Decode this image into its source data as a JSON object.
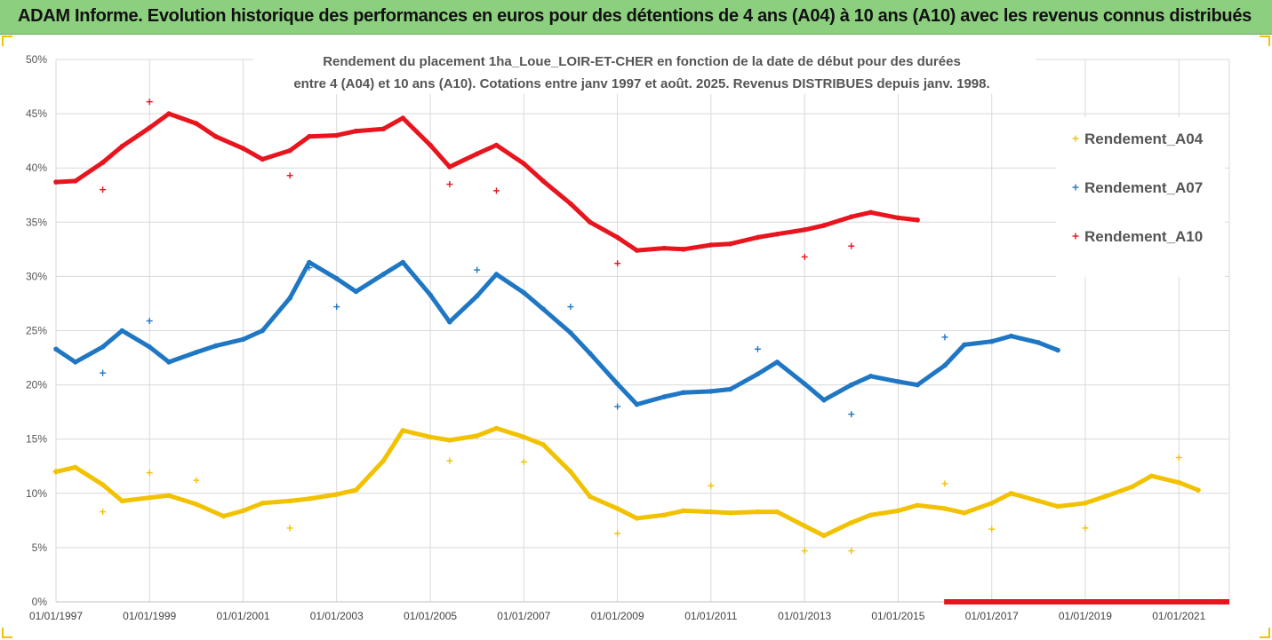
{
  "banner": {
    "title": "ADAM Informe. Evolution historique des performances en euros pour des détentions de 4 ans (A04) à 10 ans (A10) avec les revenus connus distribués",
    "color": "#8ccf7e"
  },
  "chart_data": {
    "type": "line",
    "title_lines": [
      "Rendement du placement 1ha_Loue_LOIR-ET-CHER en fonction de la date de début pour des durées",
      "entre 4 (A04) et 10 ans (A10). Cotations entre janv 1997 et août. 2025. Revenus DISTRIBUES depuis janv. 1998."
    ],
    "xlabel": "",
    "ylabel": "",
    "x_range": [
      "1997-01-01",
      "2022-01-01"
    ],
    "ylim": [
      0,
      50
    ],
    "y_unit": "%",
    "y_ticks": [
      "0%",
      "5%",
      "10%",
      "15%",
      "20%",
      "25%",
      "30%",
      "35%",
      "40%",
      "45%",
      "50%"
    ],
    "x_ticks": [
      {
        "date": "1997-01-01",
        "label": "01/01/1997"
      },
      {
        "date": "1999-01-01",
        "label": "01/01/1999"
      },
      {
        "date": "2001-01-01",
        "label": "01/01/2001"
      },
      {
        "date": "2003-01-01",
        "label": "01/01/2003"
      },
      {
        "date": "2005-01-01",
        "label": "01/01/2005"
      },
      {
        "date": "2007-01-01",
        "label": "01/01/2007"
      },
      {
        "date": "2009-01-01",
        "label": "01/01/2009"
      },
      {
        "date": "2011-01-01",
        "label": "01/01/2011"
      },
      {
        "date": "2013-01-01",
        "label": "01/01/2013"
      },
      {
        "date": "2015-01-01",
        "label": "01/01/2015"
      },
      {
        "date": "2017-01-01",
        "label": "01/01/2017"
      },
      {
        "date": "2019-01-01",
        "label": "01/01/2019"
      },
      {
        "date": "2021-01-01",
        "label": "01/01/2021"
      }
    ],
    "grid": true,
    "legend_position": "right",
    "series": [
      {
        "name": "Rendement_A04",
        "color": "#f2c200",
        "points": [
          [
            "1997-01-01",
            12.0
          ],
          [
            "1997-06-01",
            12.4
          ],
          [
            "1998-01-01",
            10.8
          ],
          [
            "1998-06-01",
            9.3
          ],
          [
            "1999-01-01",
            9.6
          ],
          [
            "1999-06-01",
            9.8
          ],
          [
            "2000-01-01",
            9.0
          ],
          [
            "2000-08-01",
            7.9
          ],
          [
            "2001-01-01",
            8.4
          ],
          [
            "2001-06-01",
            9.1
          ],
          [
            "2002-01-01",
            9.3
          ],
          [
            "2002-06-01",
            9.5
          ],
          [
            "2003-01-01",
            9.9
          ],
          [
            "2003-06-01",
            10.3
          ],
          [
            "2004-01-01",
            13.0
          ],
          [
            "2004-06-01",
            15.8
          ],
          [
            "2005-01-01",
            15.2
          ],
          [
            "2005-06-01",
            14.9
          ],
          [
            "2006-01-01",
            15.3
          ],
          [
            "2006-06-01",
            16.0
          ],
          [
            "2007-01-01",
            15.2
          ],
          [
            "2007-06-01",
            14.5
          ],
          [
            "2008-01-01",
            12.0
          ],
          [
            "2008-06-01",
            9.7
          ],
          [
            "2009-01-01",
            8.6
          ],
          [
            "2009-06-01",
            7.7
          ],
          [
            "2010-01-01",
            8.0
          ],
          [
            "2010-06-01",
            8.4
          ],
          [
            "2011-01-01",
            8.3
          ],
          [
            "2011-06-01",
            8.2
          ],
          [
            "2012-01-01",
            8.3
          ],
          [
            "2012-06-01",
            8.3
          ],
          [
            "2013-01-01",
            7.0
          ],
          [
            "2013-06-01",
            6.1
          ],
          [
            "2014-01-01",
            7.3
          ],
          [
            "2014-06-01",
            8.0
          ],
          [
            "2015-01-01",
            8.4
          ],
          [
            "2015-06-01",
            8.9
          ],
          [
            "2016-01-01",
            8.6
          ],
          [
            "2016-06-01",
            8.2
          ],
          [
            "2017-01-01",
            9.1
          ],
          [
            "2017-06-01",
            10.0
          ],
          [
            "2018-01-01",
            9.3
          ],
          [
            "2018-06-01",
            8.8
          ],
          [
            "2019-01-01",
            9.1
          ],
          [
            "2019-06-01",
            9.7
          ],
          [
            "2020-01-01",
            10.6
          ],
          [
            "2020-06-01",
            11.6
          ],
          [
            "2021-01-01",
            11.0
          ],
          [
            "2021-06-01",
            10.3
          ]
        ],
        "scatter": [
          [
            "1997-01-01",
            12.0
          ],
          [
            "1998-01-01",
            8.3
          ],
          [
            "1999-01-01",
            11.9
          ],
          [
            "2000-01-01",
            11.2
          ],
          [
            "2002-01-01",
            6.8
          ],
          [
            "2005-06-01",
            13.0
          ],
          [
            "2007-01-01",
            12.9
          ],
          [
            "2009-01-01",
            6.3
          ],
          [
            "2011-01-01",
            10.7
          ],
          [
            "2013-01-01",
            4.7
          ],
          [
            "2014-01-01",
            4.7
          ],
          [
            "2016-01-01",
            10.9
          ],
          [
            "2017-01-01",
            6.7
          ],
          [
            "2019-01-01",
            6.8
          ],
          [
            "2021-01-01",
            13.3
          ]
        ]
      },
      {
        "name": "Rendement_A07",
        "color": "#1f77c4",
        "points": [
          [
            "1997-01-01",
            23.3
          ],
          [
            "1997-06-01",
            22.1
          ],
          [
            "1998-01-01",
            23.5
          ],
          [
            "1998-06-01",
            25.0
          ],
          [
            "1999-01-01",
            23.5
          ],
          [
            "1999-06-01",
            22.1
          ],
          [
            "2000-01-01",
            23.0
          ],
          [
            "2000-06-01",
            23.6
          ],
          [
            "2001-01-01",
            24.2
          ],
          [
            "2001-06-01",
            25.0
          ],
          [
            "2002-01-01",
            28.0
          ],
          [
            "2002-06-01",
            31.3
          ],
          [
            "2003-01-01",
            29.8
          ],
          [
            "2003-06-01",
            28.6
          ],
          [
            "2004-01-01",
            30.2
          ],
          [
            "2004-06-01",
            31.3
          ],
          [
            "2005-01-01",
            28.3
          ],
          [
            "2005-06-01",
            25.8
          ],
          [
            "2006-01-01",
            28.2
          ],
          [
            "2006-06-01",
            30.2
          ],
          [
            "2007-01-01",
            28.5
          ],
          [
            "2007-06-01",
            27.0
          ],
          [
            "2008-01-01",
            24.8
          ],
          [
            "2008-06-01",
            22.9
          ],
          [
            "2009-01-01",
            20.1
          ],
          [
            "2009-06-01",
            18.2
          ],
          [
            "2010-01-01",
            18.9
          ],
          [
            "2010-06-01",
            19.3
          ],
          [
            "2011-01-01",
            19.4
          ],
          [
            "2011-06-01",
            19.6
          ],
          [
            "2012-01-01",
            21.0
          ],
          [
            "2012-06-01",
            22.1
          ],
          [
            "2013-01-01",
            20.1
          ],
          [
            "2013-06-01",
            18.6
          ],
          [
            "2014-01-01",
            20.0
          ],
          [
            "2014-06-01",
            20.8
          ],
          [
            "2015-01-01",
            20.3
          ],
          [
            "2015-06-01",
            20.0
          ],
          [
            "2016-01-01",
            21.8
          ],
          [
            "2016-06-01",
            23.7
          ],
          [
            "2017-01-01",
            24.0
          ],
          [
            "2017-06-01",
            24.5
          ],
          [
            "2018-01-01",
            23.9
          ],
          [
            "2018-06-01",
            23.2
          ]
        ],
        "scatter": [
          [
            "1998-01-01",
            21.1
          ],
          [
            "1999-01-01",
            25.9
          ],
          [
            "2002-06-01",
            30.8
          ],
          [
            "2003-01-01",
            27.2
          ],
          [
            "2006-01-01",
            30.6
          ],
          [
            "2008-01-01",
            27.2
          ],
          [
            "2009-01-01",
            18.0
          ],
          [
            "2012-01-01",
            23.3
          ],
          [
            "2014-01-01",
            17.3
          ],
          [
            "2016-01-01",
            24.4
          ]
        ]
      },
      {
        "name": "Rendement_A10",
        "color": "#e8141e",
        "points": [
          [
            "1997-01-01",
            38.7
          ],
          [
            "1997-06-01",
            38.8
          ],
          [
            "1998-01-01",
            40.5
          ],
          [
            "1998-06-01",
            42.0
          ],
          [
            "1999-01-01",
            43.7
          ],
          [
            "1999-06-01",
            45.0
          ],
          [
            "2000-01-01",
            44.1
          ],
          [
            "2000-06-01",
            42.9
          ],
          [
            "2001-01-01",
            41.8
          ],
          [
            "2001-06-01",
            40.8
          ],
          [
            "2002-01-01",
            41.6
          ],
          [
            "2002-06-01",
            42.9
          ],
          [
            "2003-01-01",
            43.0
          ],
          [
            "2003-06-01",
            43.4
          ],
          [
            "2004-01-01",
            43.6
          ],
          [
            "2004-06-01",
            44.6
          ],
          [
            "2005-01-01",
            42.1
          ],
          [
            "2005-06-01",
            40.1
          ],
          [
            "2006-01-01",
            41.3
          ],
          [
            "2006-06-01",
            42.1
          ],
          [
            "2007-01-01",
            40.4
          ],
          [
            "2007-06-01",
            38.8
          ],
          [
            "2008-01-01",
            36.7
          ],
          [
            "2008-06-01",
            35.0
          ],
          [
            "2009-01-01",
            33.6
          ],
          [
            "2009-06-01",
            32.4
          ],
          [
            "2010-01-01",
            32.6
          ],
          [
            "2010-06-01",
            32.5
          ],
          [
            "2011-01-01",
            32.9
          ],
          [
            "2011-06-01",
            33.0
          ],
          [
            "2012-01-01",
            33.6
          ],
          [
            "2012-06-01",
            33.9
          ],
          [
            "2013-01-01",
            34.3
          ],
          [
            "2013-06-01",
            34.7
          ],
          [
            "2014-01-01",
            35.5
          ],
          [
            "2014-06-01",
            35.9
          ],
          [
            "2015-01-01",
            35.4
          ],
          [
            "2015-06-01",
            35.2
          ]
        ],
        "scatter": [
          [
            "1998-01-01",
            38.0
          ],
          [
            "1999-01-01",
            46.1
          ],
          [
            "2002-01-01",
            39.3
          ],
          [
            "2005-06-01",
            38.5
          ],
          [
            "2006-06-01",
            37.9
          ],
          [
            "2009-01-01",
            31.2
          ],
          [
            "2013-01-01",
            31.8
          ],
          [
            "2014-01-01",
            32.8
          ]
        ],
        "zero_segment": [
          [
            "2015-06-01",
            0
          ],
          [
            "2022-01-01",
            0
          ]
        ]
      }
    ]
  }
}
